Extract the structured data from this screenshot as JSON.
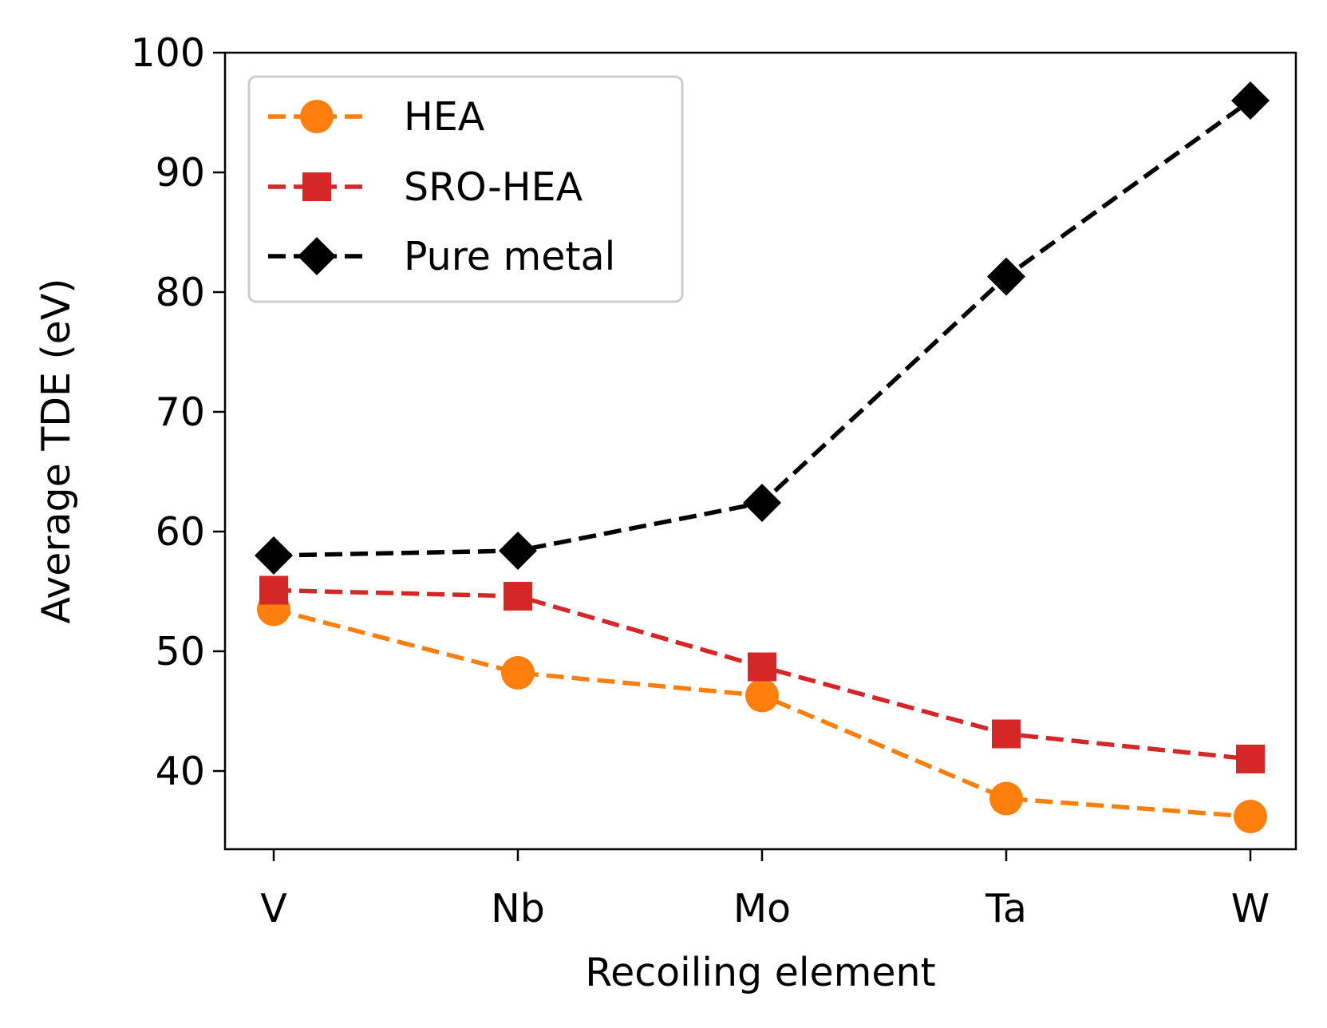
{
  "chart_data": {
    "type": "line",
    "title": "",
    "xlabel": "Recoiling element",
    "ylabel": "Average TDE (eV)",
    "categories": [
      "V",
      "Nb",
      "Mo",
      "Ta",
      "W"
    ],
    "ylim": [
      33,
      100
    ],
    "yticks": [
      40,
      50,
      60,
      70,
      80,
      90,
      100
    ],
    "grid": false,
    "legend_position": "top-left",
    "series": [
      {
        "name": "HEA",
        "color": "#ff7f0e",
        "marker": "circle",
        "linestyle": "dashed",
        "values": [
          53.5,
          48.2,
          46.3,
          37.7,
          36.2
        ]
      },
      {
        "name": "SRO-HEA",
        "color": "#d62728",
        "marker": "square",
        "linestyle": "dashed",
        "values": [
          55.1,
          54.6,
          48.7,
          43.1,
          41.0
        ]
      },
      {
        "name": "Pure metal",
        "color": "#000000",
        "marker": "diamond",
        "linestyle": "dashed",
        "values": [
          58.0,
          58.4,
          62.4,
          81.3,
          96.0
        ]
      }
    ]
  }
}
